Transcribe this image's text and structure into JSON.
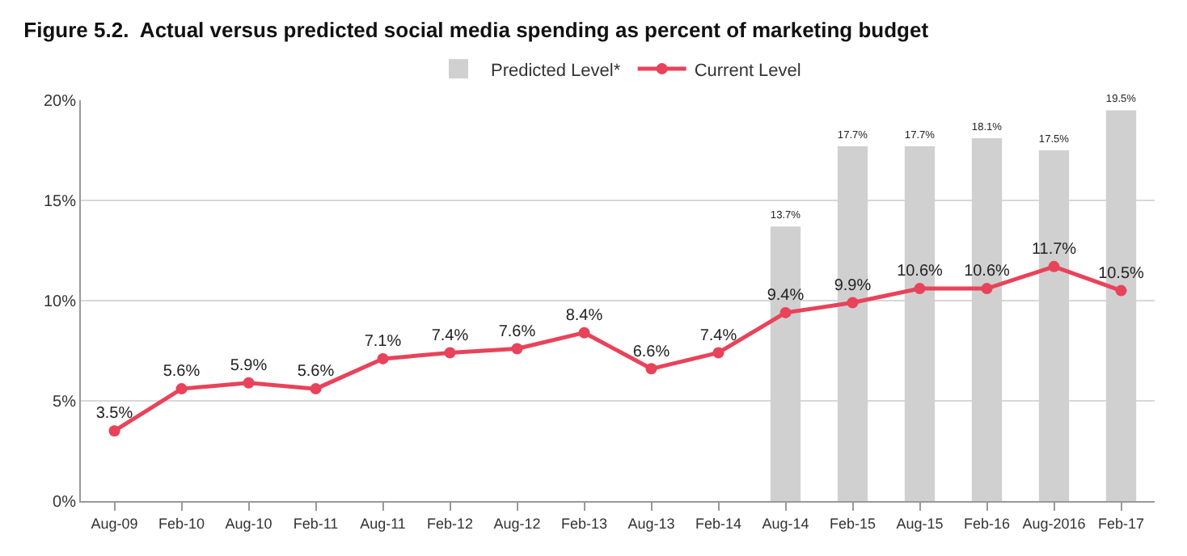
{
  "chart_data": {
    "type": "line",
    "title": "Figure 5.2.  Actual versus predicted social media spending as percent of marketing budget",
    "categories": [
      "Aug-09",
      "Feb-10",
      "Aug-10",
      "Feb-11",
      "Aug-11",
      "Feb-12",
      "Aug-12",
      "Feb-13",
      "Aug-13",
      "Feb-14",
      "Aug-14",
      "Feb-15",
      "Aug-15",
      "Feb-16",
      "Aug-2016",
      "Feb-17"
    ],
    "series": [
      {
        "name": "Predicted Level*",
        "type": "bar",
        "color": "#d0d0d0",
        "values": [
          null,
          null,
          null,
          null,
          null,
          null,
          null,
          null,
          null,
          null,
          13.7,
          17.7,
          17.7,
          18.1,
          17.5,
          19.5
        ],
        "value_labels": [
          null,
          null,
          null,
          null,
          null,
          null,
          null,
          null,
          null,
          null,
          "13.7%",
          "17.7%",
          "17.7%",
          "18.1%",
          "17.5%",
          "19.5%"
        ]
      },
      {
        "name": "Current Level",
        "color": "#e8435a",
        "values": [
          3.5,
          5.6,
          5.9,
          5.6,
          7.1,
          7.4,
          7.6,
          8.4,
          6.6,
          7.4,
          9.4,
          9.9,
          10.6,
          10.6,
          11.7,
          10.5
        ],
        "value_labels": [
          "3.5%",
          "5.6%",
          "5.9%",
          "5.6%",
          "7.1%",
          "7.4%",
          "7.6%",
          "8.4%",
          "6.6%",
          "7.4%",
          "9.4%",
          "9.9%",
          "10.6%",
          "10.6%",
          "11.7%",
          "10.5%"
        ]
      }
    ],
    "ylim": [
      0,
      20
    ],
    "yticks": [
      {
        "value": 0,
        "label": "0%"
      },
      {
        "value": 5,
        "label": "5%"
      },
      {
        "value": 10,
        "label": "10%"
      },
      {
        "value": 15,
        "label": "15%"
      },
      {
        "value": 20,
        "label": "20%"
      }
    ],
    "grid": "y",
    "legend": "top",
    "marker": "circle",
    "line_style": "solid"
  }
}
